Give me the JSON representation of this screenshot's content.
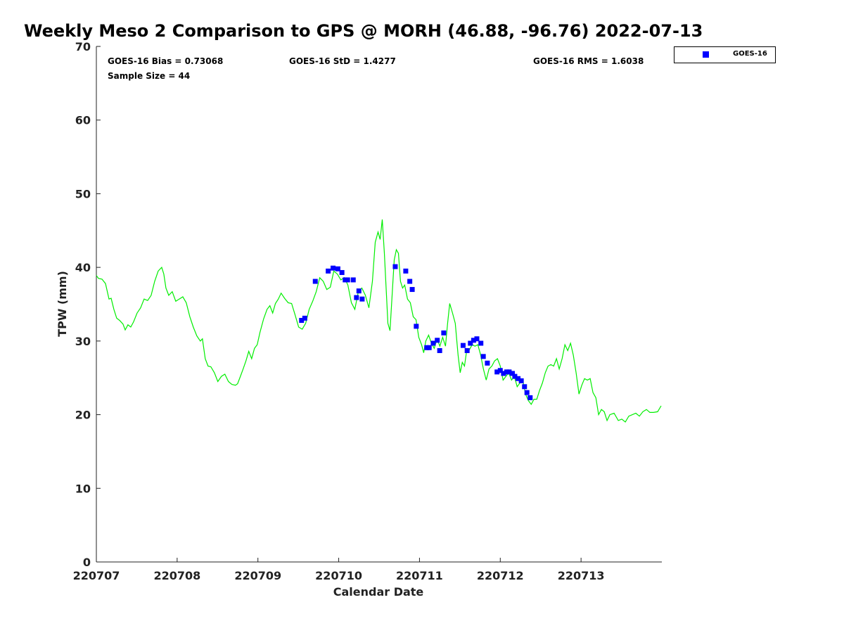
{
  "chart_data": {
    "type": "scatter",
    "title": "Weekly Meso 2 Comparison to GPS @ MORH (46.88, -96.76) 2022-07-13",
    "xlabel": "Calendar Date",
    "ylabel": "TPW (mm)",
    "xlim": [
      0,
      7
    ],
    "ylim": [
      0,
      70
    ],
    "x_unit": "days since 220707",
    "xticks": [
      {
        "value": 0,
        "label": "220707"
      },
      {
        "value": 1,
        "label": "220708"
      },
      {
        "value": 2,
        "label": "220709"
      },
      {
        "value": 3,
        "label": "220710"
      },
      {
        "value": 4,
        "label": "220711"
      },
      {
        "value": 5,
        "label": "220712"
      },
      {
        "value": 6,
        "label": "220713"
      }
    ],
    "yticks": [
      0,
      10,
      20,
      30,
      40,
      50,
      60,
      70
    ],
    "grid": false,
    "legend": {
      "placement": "outside-top-right",
      "entries": [
        {
          "name": "GOES-16",
          "color": "#0000ff",
          "marker": "square"
        }
      ]
    },
    "stats": {
      "bias": "GOES-16 Bias = 0.73068",
      "std": "GOES-16 StD = 1.4277",
      "rms": "GOES-16 RMS = 1.6038",
      "sample": "Sample Size = 44"
    },
    "series": [
      {
        "name": "GPS",
        "color": "#00ee00",
        "kind": "line",
        "points": [
          [
            0,
            38.9
          ],
          [
            0.026,
            38.5
          ],
          [
            0.07,
            38.4
          ],
          [
            0.113,
            37.8
          ],
          [
            0.157,
            35.7
          ],
          [
            0.183,
            35.8
          ],
          [
            0.217,
            34.3
          ],
          [
            0.252,
            33.1
          ],
          [
            0.287,
            32.8
          ],
          [
            0.33,
            32.3
          ],
          [
            0.357,
            31.5
          ],
          [
            0.391,
            32.2
          ],
          [
            0.426,
            31.9
          ],
          [
            0.461,
            32.6
          ],
          [
            0.504,
            33.8
          ],
          [
            0.548,
            34.5
          ],
          [
            0.591,
            35.7
          ],
          [
            0.635,
            35.5
          ],
          [
            0.678,
            36.2
          ],
          [
            0.722,
            38.1
          ],
          [
            0.765,
            39.5
          ],
          [
            0.809,
            40.0
          ],
          [
            0.835,
            39.1
          ],
          [
            0.861,
            37.2
          ],
          [
            0.896,
            36.2
          ],
          [
            0.939,
            36.7
          ],
          [
            0.983,
            35.4
          ],
          [
            1.026,
            35.7
          ],
          [
            1.07,
            36.0
          ],
          [
            1.113,
            35.2
          ],
          [
            1.157,
            33.3
          ],
          [
            1.2,
            31.9
          ],
          [
            1.243,
            30.7
          ],
          [
            1.287,
            30.0
          ],
          [
            1.313,
            30.3
          ],
          [
            1.348,
            27.6
          ],
          [
            1.383,
            26.6
          ],
          [
            1.417,
            26.5
          ],
          [
            1.461,
            25.7
          ],
          [
            1.504,
            24.5
          ],
          [
            1.548,
            25.2
          ],
          [
            1.591,
            25.5
          ],
          [
            1.635,
            24.5
          ],
          [
            1.678,
            24.1
          ],
          [
            1.722,
            24.0
          ],
          [
            1.748,
            24.2
          ],
          [
            1.783,
            25.2
          ],
          [
            1.817,
            26.2
          ],
          [
            1.852,
            27.3
          ],
          [
            1.887,
            28.6
          ],
          [
            1.922,
            27.6
          ],
          [
            1.957,
            29.0
          ],
          [
            1.991,
            29.5
          ],
          [
            2.026,
            31.2
          ],
          [
            2.07,
            33.0
          ],
          [
            2.113,
            34.3
          ],
          [
            2.148,
            34.8
          ],
          [
            2.183,
            33.8
          ],
          [
            2.217,
            35.1
          ],
          [
            2.252,
            35.7
          ],
          [
            2.287,
            36.5
          ],
          [
            2.33,
            35.8
          ],
          [
            2.374,
            35.2
          ],
          [
            2.417,
            35.1
          ],
          [
            2.461,
            33.5
          ],
          [
            2.504,
            31.9
          ],
          [
            2.548,
            31.6
          ],
          [
            2.591,
            32.4
          ],
          [
            2.635,
            34.3
          ],
          [
            2.678,
            35.4
          ],
          [
            2.722,
            36.7
          ],
          [
            2.765,
            38.6
          ],
          [
            2.809,
            38.1
          ],
          [
            2.852,
            37.0
          ],
          [
            2.896,
            37.3
          ],
          [
            2.939,
            39.5
          ],
          [
            2.983,
            39.1
          ],
          [
            3.026,
            38.3
          ],
          [
            3.07,
            38.6
          ],
          [
            3.113,
            37.6
          ],
          [
            3.157,
            35.2
          ],
          [
            3.2,
            34.3
          ],
          [
            3.243,
            36.7
          ],
          [
            3.287,
            37.2
          ],
          [
            3.33,
            36.2
          ],
          [
            3.374,
            34.5
          ],
          [
            3.417,
            38.1
          ],
          [
            3.452,
            43.4
          ],
          [
            3.487,
            44.8
          ],
          [
            3.513,
            43.8
          ],
          [
            3.539,
            46.5
          ],
          [
            3.565,
            41.9
          ],
          [
            3.591,
            36.2
          ],
          [
            3.609,
            32.4
          ],
          [
            3.635,
            31.4
          ],
          [
            3.661,
            36.2
          ],
          [
            3.687,
            41.0
          ],
          [
            3.713,
            42.4
          ],
          [
            3.739,
            41.9
          ],
          [
            3.765,
            38.1
          ],
          [
            3.791,
            37.2
          ],
          [
            3.817,
            37.6
          ],
          [
            3.852,
            35.7
          ],
          [
            3.887,
            35.2
          ],
          [
            3.922,
            33.3
          ],
          [
            3.957,
            32.9
          ],
          [
            3.991,
            30.5
          ],
          [
            4.026,
            29.5
          ],
          [
            4.052,
            28.4
          ],
          [
            4.078,
            30.0
          ],
          [
            4.113,
            30.8
          ],
          [
            4.148,
            29.7
          ],
          [
            4.183,
            29.0
          ],
          [
            4.217,
            30.3
          ],
          [
            4.252,
            29.3
          ],
          [
            4.287,
            30.5
          ],
          [
            4.322,
            29.3
          ],
          [
            4.348,
            32.4
          ],
          [
            4.374,
            35.1
          ],
          [
            4.409,
            33.8
          ],
          [
            4.443,
            32.4
          ],
          [
            4.478,
            28.1
          ],
          [
            4.504,
            25.7
          ],
          [
            4.53,
            27.1
          ],
          [
            4.557,
            26.6
          ],
          [
            4.583,
            28.6
          ],
          [
            4.617,
            28.8
          ],
          [
            4.652,
            29.5
          ],
          [
            4.687,
            29.3
          ],
          [
            4.722,
            29.5
          ],
          [
            4.757,
            28.1
          ],
          [
            4.791,
            26.2
          ],
          [
            4.826,
            24.7
          ],
          [
            4.861,
            26.2
          ],
          [
            4.896,
            26.6
          ],
          [
            4.93,
            27.3
          ],
          [
            4.965,
            27.6
          ],
          [
            5.0,
            26.6
          ],
          [
            5.035,
            24.7
          ],
          [
            5.07,
            25.2
          ],
          [
            5.104,
            25.7
          ],
          [
            5.139,
            24.7
          ],
          [
            5.174,
            25.2
          ],
          [
            5.209,
            23.8
          ],
          [
            5.243,
            24.3
          ],
          [
            5.278,
            24.7
          ],
          [
            5.313,
            22.8
          ],
          [
            5.348,
            21.9
          ],
          [
            5.383,
            21.4
          ],
          [
            5.417,
            22.1
          ],
          [
            5.452,
            22.1
          ],
          [
            5.487,
            23.3
          ],
          [
            5.522,
            24.3
          ],
          [
            5.557,
            25.7
          ],
          [
            5.591,
            26.6
          ],
          [
            5.626,
            26.8
          ],
          [
            5.661,
            26.6
          ],
          [
            5.696,
            27.6
          ],
          [
            5.73,
            26.2
          ],
          [
            5.765,
            27.6
          ],
          [
            5.8,
            29.5
          ],
          [
            5.835,
            28.7
          ],
          [
            5.87,
            29.7
          ],
          [
            5.904,
            28.1
          ],
          [
            5.939,
            25.7
          ],
          [
            5.974,
            22.8
          ],
          [
            6.009,
            24.0
          ],
          [
            6.043,
            24.9
          ],
          [
            6.078,
            24.7
          ],
          [
            6.113,
            24.9
          ],
          [
            6.148,
            23.0
          ],
          [
            6.183,
            22.3
          ],
          [
            6.217,
            20.0
          ],
          [
            6.252,
            20.7
          ],
          [
            6.287,
            20.4
          ],
          [
            6.322,
            19.2
          ],
          [
            6.357,
            20.0
          ],
          [
            6.409,
            20.2
          ],
          [
            6.461,
            19.2
          ],
          [
            6.504,
            19.4
          ],
          [
            6.548,
            19.0
          ],
          [
            6.591,
            19.8
          ],
          [
            6.635,
            20.0
          ],
          [
            6.678,
            20.2
          ],
          [
            6.722,
            19.8
          ],
          [
            6.765,
            20.4
          ],
          [
            6.809,
            20.7
          ],
          [
            6.852,
            20.3
          ],
          [
            6.896,
            20.3
          ],
          [
            6.948,
            20.4
          ],
          [
            6.991,
            21.2
          ]
        ]
      },
      {
        "name": "GOES-16",
        "color": "#0000ff",
        "kind": "scatter",
        "points": [
          [
            2.54,
            32.8
          ],
          [
            2.58,
            33.1
          ],
          [
            2.71,
            38.1
          ],
          [
            2.87,
            39.5
          ],
          [
            2.93,
            39.9
          ],
          [
            2.99,
            39.8
          ],
          [
            3.04,
            39.3
          ],
          [
            3.08,
            38.3
          ],
          [
            3.11,
            38.3
          ],
          [
            3.18,
            38.3
          ],
          [
            3.22,
            35.9
          ],
          [
            3.25,
            36.8
          ],
          [
            3.29,
            35.7
          ],
          [
            3.7,
            40.1
          ],
          [
            3.83,
            39.5
          ],
          [
            3.88,
            38.1
          ],
          [
            3.91,
            37.0
          ],
          [
            3.96,
            32.0
          ],
          [
            4.09,
            29.1
          ],
          [
            4.12,
            29.1
          ],
          [
            4.17,
            29.7
          ],
          [
            4.22,
            30.1
          ],
          [
            4.25,
            28.7
          ],
          [
            4.3,
            31.1
          ],
          [
            4.54,
            29.4
          ],
          [
            4.59,
            28.7
          ],
          [
            4.63,
            29.7
          ],
          [
            4.67,
            30.1
          ],
          [
            4.71,
            30.3
          ],
          [
            4.76,
            29.7
          ],
          [
            4.79,
            27.9
          ],
          [
            4.84,
            27.0
          ],
          [
            4.96,
            25.8
          ],
          [
            5.0,
            26.0
          ],
          [
            5.04,
            25.6
          ],
          [
            5.08,
            25.8
          ],
          [
            5.11,
            25.8
          ],
          [
            5.15,
            25.6
          ],
          [
            5.18,
            25.2
          ],
          [
            5.22,
            24.9
          ],
          [
            5.26,
            24.6
          ],
          [
            5.3,
            23.8
          ],
          [
            5.33,
            23.0
          ],
          [
            5.37,
            22.3
          ]
        ]
      }
    ]
  }
}
